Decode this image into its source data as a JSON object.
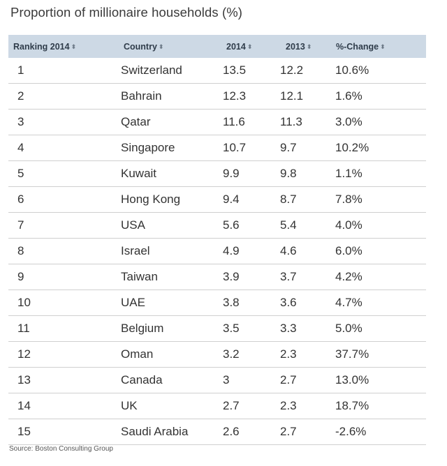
{
  "title": "Proportion of millionaire households (%)",
  "source": "Source: Boston Consulting Group",
  "sort_glyph": "⬍",
  "columns": [
    "Ranking 2014",
    "Country",
    "2014",
    "2013",
    "%-Change"
  ],
  "chart_data": {
    "type": "table",
    "title": "Proportion of millionaire households (%)",
    "columns": [
      "Ranking 2014",
      "Country",
      "2014",
      "2013",
      "%-Change"
    ],
    "rows": [
      [
        "1",
        "Switzerland",
        "13.5",
        "12.2",
        "10.6%"
      ],
      [
        "2",
        "Bahrain",
        "12.3",
        "12.1",
        "1.6%"
      ],
      [
        "3",
        "Qatar",
        "11.6",
        "11.3",
        "3.0%"
      ],
      [
        "4",
        "Singapore",
        "10.7",
        "9.7",
        "10.2%"
      ],
      [
        "5",
        "Kuwait",
        "9.9",
        "9.8",
        "1.1%"
      ],
      [
        "6",
        "Hong Kong",
        "9.4",
        "8.7",
        "7.8%"
      ],
      [
        "7",
        "USA",
        "5.6",
        "5.4",
        "4.0%"
      ],
      [
        "8",
        "Israel",
        "4.9",
        "4.6",
        "6.0%"
      ],
      [
        "9",
        "Taiwan",
        "3.9",
        "3.7",
        "4.2%"
      ],
      [
        "10",
        "UAE",
        "3.8",
        "3.6",
        "4.7%"
      ],
      [
        "11",
        "Belgium",
        "3.5",
        "3.3",
        "5.0%"
      ],
      [
        "12",
        "Oman",
        "3.2",
        "2.3",
        "37.7%"
      ],
      [
        "13",
        "Canada",
        "3",
        "2.7",
        "13.0%"
      ],
      [
        "14",
        "UK",
        "2.7",
        "2.3",
        "18.7%"
      ],
      [
        "15",
        "Saudi Arabia",
        "2.6",
        "2.7",
        "-2.6%"
      ]
    ]
  }
}
